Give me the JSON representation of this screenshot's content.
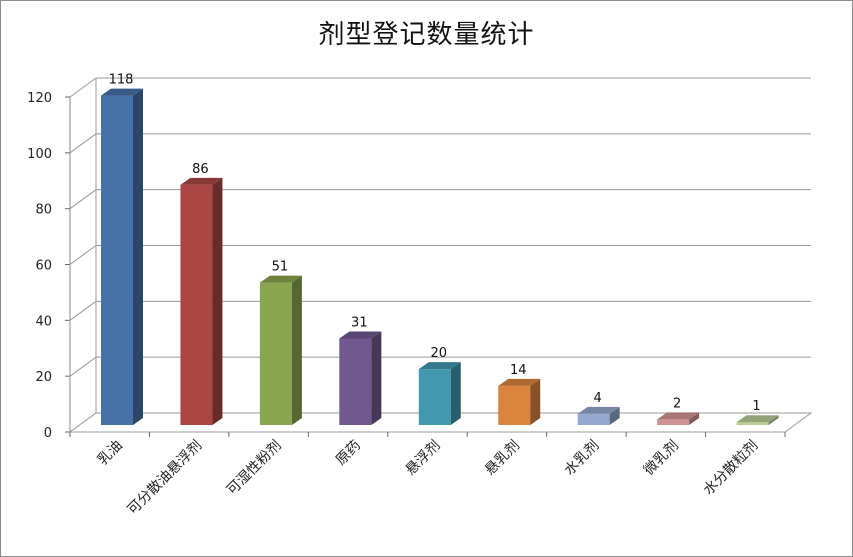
{
  "chart_data": {
    "type": "bar",
    "title": "剂型登记数量统计",
    "categories": [
      "乳油",
      "可分散油悬浮剂",
      "可湿性粉剂",
      "原药",
      "悬浮剂",
      "悬乳剂",
      "水乳剂",
      "微乳剂",
      "水分散粒剂"
    ],
    "values": [
      118,
      86,
      51,
      31,
      20,
      14,
      4,
      2,
      1
    ],
    "data_labels": [
      "118",
      "86",
      "51",
      "31",
      "20",
      "14",
      "4",
      "2",
      "1"
    ],
    "y_ticks": [
      "0",
      "20",
      "40",
      "60",
      "80",
      "100",
      "120"
    ],
    "ylim": [
      0,
      120
    ],
    "xlabel": "",
    "ylabel": "",
    "grid": true,
    "legend": "none",
    "bar_colors": [
      "#4572a7",
      "#aa4643",
      "#89a54e",
      "#71588f",
      "#4198af",
      "#db843d",
      "#93a9cf",
      "#d19392",
      "#b9cd96"
    ]
  }
}
